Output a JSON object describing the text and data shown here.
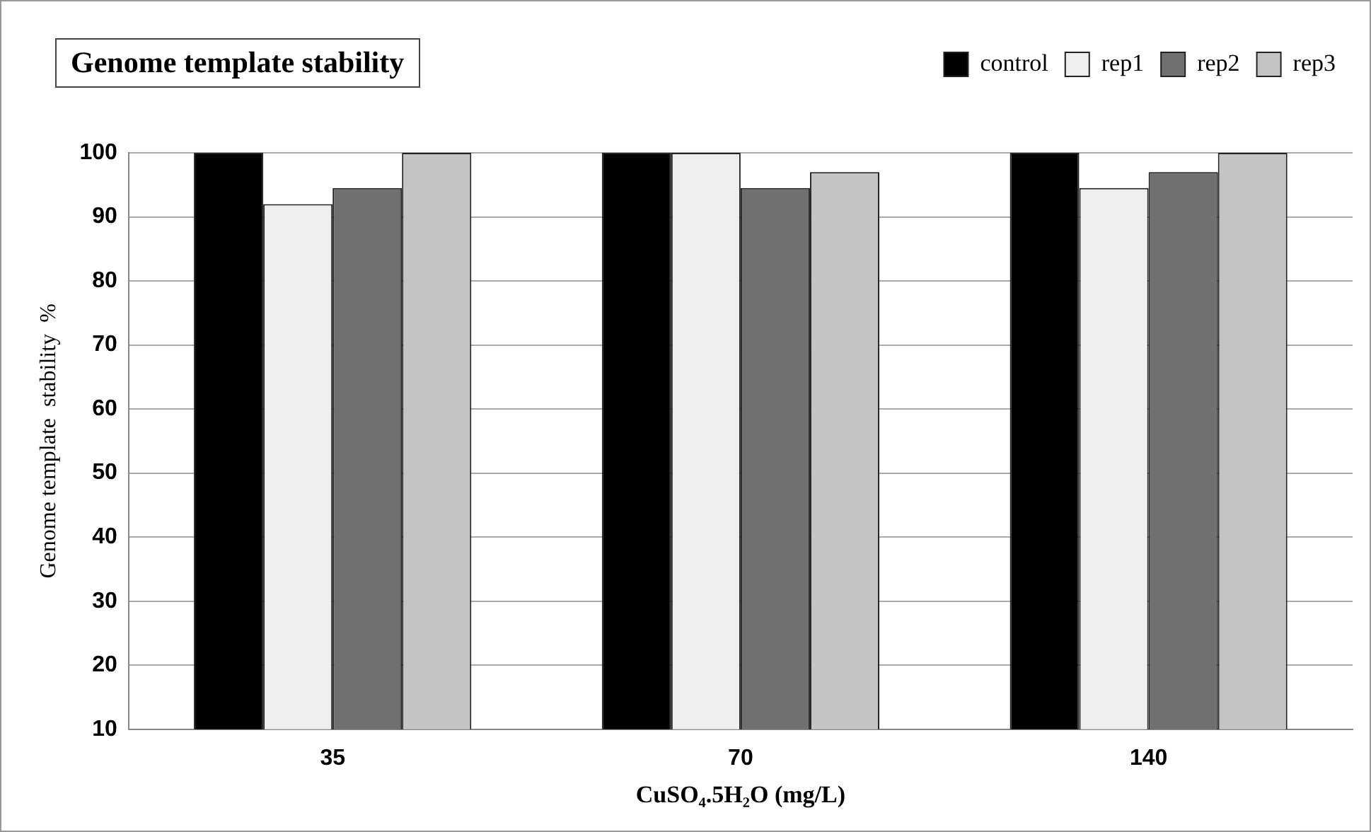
{
  "chart_data": {
    "type": "bar",
    "title": "Genome template stability",
    "xlabel": "CuSO₄.5H₂O (mg/L)",
    "ylabel": "Genome template  stability  %",
    "categories": [
      "35",
      "70",
      "140"
    ],
    "series": [
      {
        "name": "control",
        "color": "#000000",
        "values": [
          100,
          100,
          100
        ]
      },
      {
        "name": "rep1",
        "color": "#eeeeee",
        "values": [
          92,
          100,
          94.5
        ]
      },
      {
        "name": "rep2",
        "color": "#707070",
        "values": [
          94.5,
          94.5,
          97
        ]
      },
      {
        "name": "rep3",
        "color": "#c4c4c4",
        "values": [
          100,
          97,
          100
        ]
      }
    ],
    "ylim": [
      10,
      100
    ],
    "yticks": [
      10,
      20,
      30,
      40,
      50,
      60,
      70,
      80,
      90,
      100
    ],
    "grid": "y",
    "legend": "top right"
  }
}
